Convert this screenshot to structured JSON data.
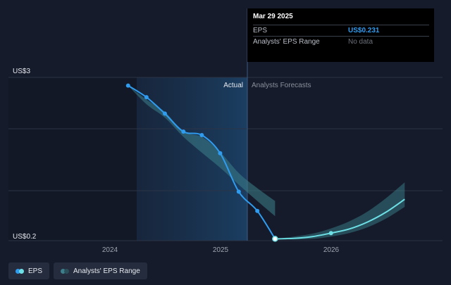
{
  "chart_data": {
    "type": "line",
    "y_top_label": "US$3",
    "y_bottom_label": "US$0.2",
    "ylim": [
      0.2,
      3
    ],
    "x_ticks": [
      "2024",
      "2025",
      "2026"
    ],
    "section_labels": {
      "actual": "Actual",
      "forecast": "Analysts Forecasts"
    },
    "series": [
      {
        "name": "EPS",
        "color": "#2f9cf0",
        "points": [
          [
            "2023-04-01",
            2.86
          ],
          [
            "2023-07-01",
            2.66
          ],
          [
            "2023-09-30",
            2.38
          ],
          [
            "2023-12-31",
            2.07
          ],
          [
            "2024-03-31",
            2.01
          ],
          [
            "2024-06-30",
            1.7
          ],
          [
            "2024-09-30",
            1.04
          ],
          [
            "2024-12-31",
            0.71
          ],
          [
            "2025-03-29",
            0.231
          ]
        ]
      },
      {
        "name": "EPS",
        "color": "#6de0e6",
        "points": [
          [
            "2025-03-29",
            0.231
          ],
          [
            "2025-06-30",
            0.24
          ],
          [
            "2025-09-30",
            0.27
          ],
          [
            "2025-12-31",
            0.33
          ],
          [
            "2026-03-31",
            0.4
          ],
          [
            "2026-06-30",
            0.52
          ],
          [
            "2026-09-30",
            0.69
          ],
          [
            "2026-12-31",
            0.91
          ]
        ]
      }
    ],
    "ranges": [
      {
        "name": "Analysts' EPS Range",
        "color": "#3c7f8a",
        "points": [
          [
            "2023-04-01",
            2.86,
            2.86
          ],
          [
            "2023-07-01",
            2.54,
            2.62
          ],
          [
            "2023-09-30",
            2.31,
            2.41
          ],
          [
            "2023-12-31",
            1.98,
            2.07
          ],
          [
            "2024-03-31",
            1.71,
            1.98
          ],
          [
            "2024-06-30",
            1.45,
            1.72
          ],
          [
            "2024-09-30",
            1.16,
            1.36
          ],
          [
            "2024-12-31",
            0.88,
            1.1
          ],
          [
            "2025-03-29",
            0.62,
            0.88
          ]
        ]
      },
      {
        "name": "Analysts' EPS Range",
        "color": "#3c7f8a",
        "points": [
          [
            "2025-03-29",
            0.231,
            0.231
          ],
          [
            "2025-06-30",
            0.22,
            0.27
          ],
          [
            "2025-09-30",
            0.23,
            0.32
          ],
          [
            "2025-12-31",
            0.27,
            0.41
          ],
          [
            "2026-03-31",
            0.33,
            0.53
          ],
          [
            "2026-06-30",
            0.43,
            0.7
          ],
          [
            "2026-09-30",
            0.58,
            0.93
          ],
          [
            "2026-12-31",
            0.78,
            1.2
          ]
        ]
      }
    ],
    "legend": [
      "EPS",
      "Analysts' EPS Range"
    ],
    "legend_placement": "bottom-left",
    "grid": true
  },
  "tooltip": {
    "date": "Mar 29 2025",
    "rows": [
      {
        "label": "EPS",
        "value": "US$0.231"
      },
      {
        "label": "Analysts' EPS Range",
        "value": "No data"
      }
    ]
  },
  "legend_items": [
    {
      "label": "EPS",
      "color_a": "#2f9cf0",
      "color_b": "#6de0e6"
    },
    {
      "label": "Analysts' EPS Range",
      "color_a": "#3c7f8a",
      "color_b": "#2a4f5a"
    }
  ]
}
